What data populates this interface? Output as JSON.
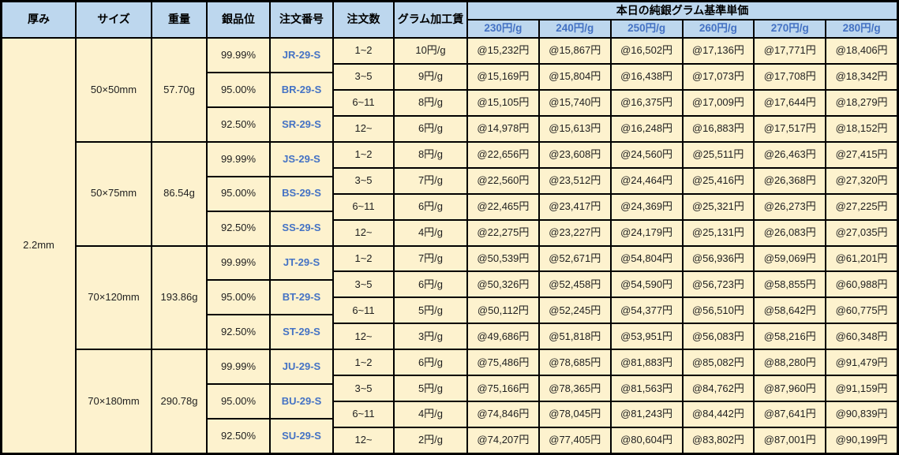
{
  "table_title": "本日の純銀グラム基準単価",
  "columns": {
    "thickness": "厚み",
    "size": "サイズ",
    "weight": "重量",
    "purity": "銀品位",
    "order_no": "注文番号",
    "qty": "注文数",
    "fee": "グラム加工賃"
  },
  "price_headers": [
    "230円/g",
    "240円/g",
    "250円/g",
    "260円/g",
    "270円/g",
    "280円/g"
  ],
  "thickness": "2.2mm",
  "colors": {
    "header_bg": "#bdd7ee",
    "body_bg": "#fdf2ce",
    "accent_blue": "#4472c4",
    "border": "#000000"
  },
  "groups": [
    {
      "size": "50×50mm",
      "weight": "57.70g",
      "purities": [
        {
          "purity": "99.99%",
          "order_no": "JR-29-S"
        },
        {
          "purity": "95.00%",
          "order_no": "BR-29-S"
        },
        {
          "purity": "92.50%",
          "order_no": "SR-29-S"
        }
      ],
      "rows": [
        {
          "qty": "1~2",
          "fee": "10円/g",
          "prices": [
            "@15,232円",
            "@15,867円",
            "@16,502円",
            "@17,136円",
            "@17,771円",
            "@18,406円"
          ]
        },
        {
          "qty": "3~5",
          "fee": "9円/g",
          "prices": [
            "@15,169円",
            "@15,804円",
            "@16,438円",
            "@17,073円",
            "@17,708円",
            "@18,342円"
          ]
        },
        {
          "qty": "6~11",
          "fee": "8円/g",
          "prices": [
            "@15,105円",
            "@15,740円",
            "@16,375円",
            "@17,009円",
            "@17,644円",
            "@18,279円"
          ]
        },
        {
          "qty": "12~",
          "fee": "6円/g",
          "prices": [
            "@14,978円",
            "@15,613円",
            "@16,248円",
            "@16,883円",
            "@17,517円",
            "@18,152円"
          ]
        }
      ]
    },
    {
      "size": "50×75mm",
      "weight": "86.54g",
      "purities": [
        {
          "purity": "99.99%",
          "order_no": "JS-29-S"
        },
        {
          "purity": "95.00%",
          "order_no": "BS-29-S"
        },
        {
          "purity": "92.50%",
          "order_no": "SS-29-S"
        }
      ],
      "rows": [
        {
          "qty": "1~2",
          "fee": "8円/g",
          "prices": [
            "@22,656円",
            "@23,608円",
            "@24,560円",
            "@25,511円",
            "@26,463円",
            "@27,415円"
          ]
        },
        {
          "qty": "3~5",
          "fee": "7円/g",
          "prices": [
            "@22,560円",
            "@23,512円",
            "@24,464円",
            "@25,416円",
            "@26,368円",
            "@27,320円"
          ]
        },
        {
          "qty": "6~11",
          "fee": "6円/g",
          "prices": [
            "@22,465円",
            "@23,417円",
            "@24,369円",
            "@25,321円",
            "@26,273円",
            "@27,225円"
          ]
        },
        {
          "qty": "12~",
          "fee": "4円/g",
          "prices": [
            "@22,275円",
            "@23,227円",
            "@24,179円",
            "@25,131円",
            "@26,083円",
            "@27,035円"
          ]
        }
      ]
    },
    {
      "size": "70×120mm",
      "weight": "193.86g",
      "purities": [
        {
          "purity": "99.99%",
          "order_no": "JT-29-S"
        },
        {
          "purity": "95.00%",
          "order_no": "BT-29-S"
        },
        {
          "purity": "92.50%",
          "order_no": "ST-29-S"
        }
      ],
      "rows": [
        {
          "qty": "1~2",
          "fee": "7円/g",
          "prices": [
            "@50,539円",
            "@52,671円",
            "@54,804円",
            "@56,936円",
            "@59,069円",
            "@61,201円"
          ]
        },
        {
          "qty": "3~5",
          "fee": "6円/g",
          "prices": [
            "@50,326円",
            "@52,458円",
            "@54,590円",
            "@56,723円",
            "@58,855円",
            "@60,988円"
          ]
        },
        {
          "qty": "6~11",
          "fee": "5円/g",
          "prices": [
            "@50,112円",
            "@52,245円",
            "@54,377円",
            "@56,510円",
            "@58,642円",
            "@60,775円"
          ]
        },
        {
          "qty": "12~",
          "fee": "3円/g",
          "prices": [
            "@49,686円",
            "@51,818円",
            "@53,951円",
            "@56,083円",
            "@58,216円",
            "@60,348円"
          ]
        }
      ]
    },
    {
      "size": "70×180mm",
      "weight": "290.78g",
      "purities": [
        {
          "purity": "99.99%",
          "order_no": "JU-29-S"
        },
        {
          "purity": "95.00%",
          "order_no": "BU-29-S"
        },
        {
          "purity": "92.50%",
          "order_no": "SU-29-S"
        }
      ],
      "rows": [
        {
          "qty": "1~2",
          "fee": "6円/g",
          "prices": [
            "@75,486円",
            "@78,685円",
            "@81,883円",
            "@85,082円",
            "@88,280円",
            "@91,479円"
          ]
        },
        {
          "qty": "3~5",
          "fee": "5円/g",
          "prices": [
            "@75,166円",
            "@78,365円",
            "@81,563円",
            "@84,762円",
            "@87,960円",
            "@91,159円"
          ]
        },
        {
          "qty": "6~11",
          "fee": "4円/g",
          "prices": [
            "@74,846円",
            "@78,045円",
            "@81,243円",
            "@84,442円",
            "@87,641円",
            "@90,839円"
          ]
        },
        {
          "qty": "12~",
          "fee": "2円/g",
          "prices": [
            "@74,207円",
            "@77,405円",
            "@80,604円",
            "@83,802円",
            "@87,001円",
            "@90,199円"
          ]
        }
      ]
    }
  ]
}
